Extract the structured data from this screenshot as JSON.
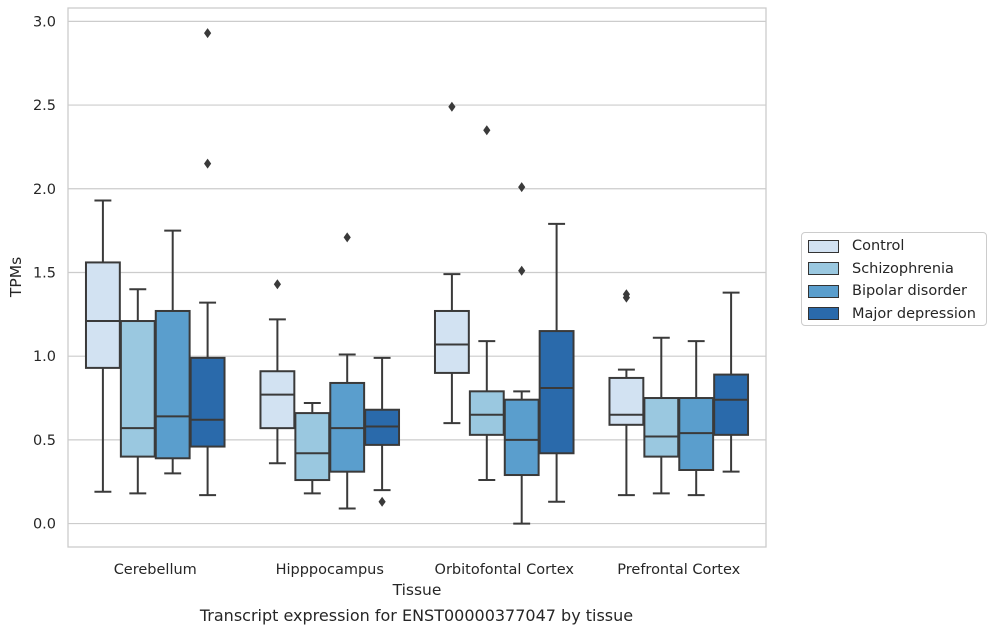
{
  "chart_data": {
    "type": "box",
    "xlabel": "Tissue",
    "ylabel": "TPMs",
    "caption": "Transcript expression for ENST00000377047 by tissue",
    "ylim": [
      -0.14,
      3.08
    ],
    "yticks": [
      "0.0",
      "0.5",
      "1.0",
      "1.5",
      "2.0",
      "2.5",
      "3.0"
    ],
    "categories": [
      "Cerebellum",
      "Hipppocampus",
      "Orbitofontal Cortex",
      "Prefrontal Cortex"
    ],
    "grid": "horizontal",
    "legend_position": "right",
    "series": [
      {
        "name": "Control",
        "color": "#d2e2f2",
        "boxes": [
          {
            "whisker_low": 0.19,
            "q1": 0.93,
            "median": 1.21,
            "q3": 1.56,
            "whisker_high": 1.93,
            "outliers": []
          },
          {
            "whisker_low": 0.36,
            "q1": 0.57,
            "median": 0.77,
            "q3": 0.91,
            "whisker_high": 1.22,
            "outliers": [
              1.43
            ]
          },
          {
            "whisker_low": 0.6,
            "q1": 0.9,
            "median": 1.07,
            "q3": 1.27,
            "whisker_high": 1.49,
            "outliers": [
              2.49
            ]
          },
          {
            "whisker_low": 0.17,
            "q1": 0.59,
            "median": 0.65,
            "q3": 0.87,
            "whisker_high": 0.92,
            "outliers": [
              1.35,
              1.37
            ]
          }
        ]
      },
      {
        "name": "Schizophrenia",
        "color": "#9ac8e0",
        "boxes": [
          {
            "whisker_low": 0.18,
            "q1": 0.4,
            "median": 0.57,
            "q3": 1.21,
            "whisker_high": 1.4,
            "outliers": []
          },
          {
            "whisker_low": 0.18,
            "q1": 0.26,
            "median": 0.42,
            "q3": 0.66,
            "whisker_high": 0.72,
            "outliers": []
          },
          {
            "whisker_low": 0.26,
            "q1": 0.53,
            "median": 0.65,
            "q3": 0.79,
            "whisker_high": 1.09,
            "outliers": [
              2.35
            ]
          },
          {
            "whisker_low": 0.18,
            "q1": 0.4,
            "median": 0.52,
            "q3": 0.75,
            "whisker_high": 1.11,
            "outliers": []
          }
        ]
      },
      {
        "name": "Bipolar disorder",
        "color": "#5a9ecd",
        "boxes": [
          {
            "whisker_low": 0.3,
            "q1": 0.39,
            "median": 0.64,
            "q3": 1.27,
            "whisker_high": 1.75,
            "outliers": []
          },
          {
            "whisker_low": 0.09,
            "q1": 0.31,
            "median": 0.57,
            "q3": 0.84,
            "whisker_high": 1.01,
            "outliers": [
              1.71
            ]
          },
          {
            "whisker_low": 0.0,
            "q1": 0.29,
            "median": 0.5,
            "q3": 0.74,
            "whisker_high": 0.79,
            "outliers": [
              1.51,
              2.01
            ]
          },
          {
            "whisker_low": 0.17,
            "q1": 0.32,
            "median": 0.54,
            "q3": 0.75,
            "whisker_high": 1.09,
            "outliers": []
          }
        ]
      },
      {
        "name": "Major depression",
        "color": "#2a6aab",
        "boxes": [
          {
            "whisker_low": 0.17,
            "q1": 0.46,
            "median": 0.62,
            "q3": 0.99,
            "whisker_high": 1.32,
            "outliers": [
              2.15,
              2.93
            ]
          },
          {
            "whisker_low": 0.2,
            "q1": 0.47,
            "median": 0.58,
            "q3": 0.68,
            "whisker_high": 0.99,
            "outliers": [
              0.13
            ]
          },
          {
            "whisker_low": 0.13,
            "q1": 0.42,
            "median": 0.81,
            "q3": 1.15,
            "whisker_high": 1.79,
            "outliers": []
          },
          {
            "whisker_low": 0.31,
            "q1": 0.53,
            "median": 0.74,
            "q3": 0.89,
            "whisker_high": 1.38,
            "outliers": []
          }
        ]
      }
    ]
  }
}
